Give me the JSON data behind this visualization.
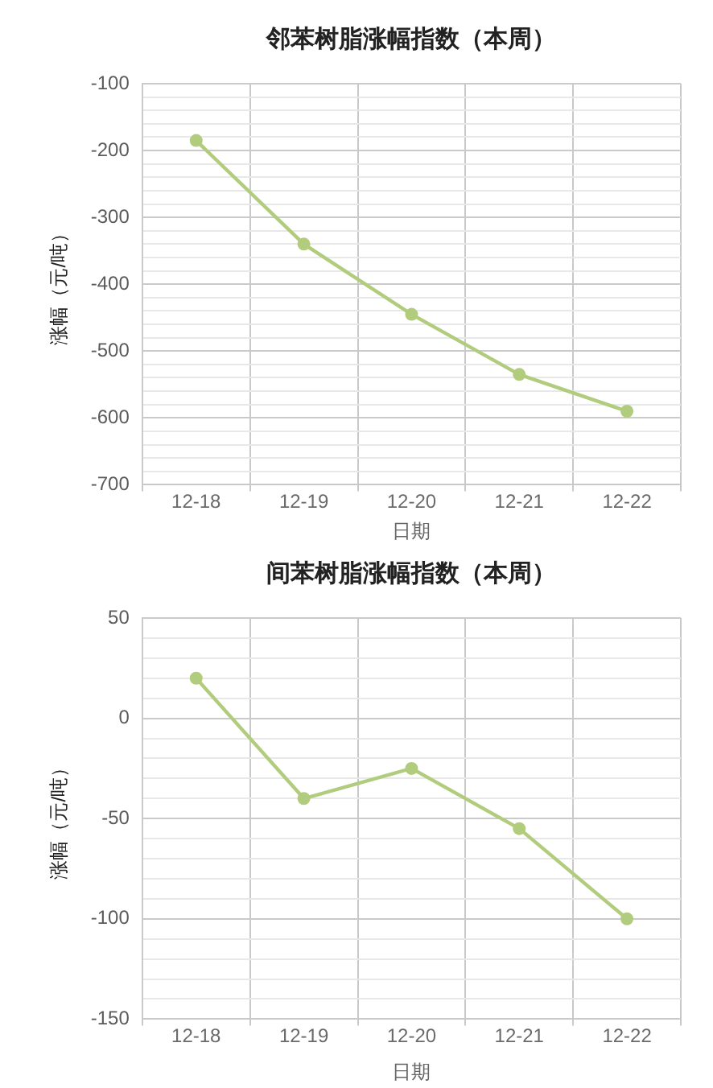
{
  "chart_data": [
    {
      "type": "line",
      "title": "邻苯树脂涨幅指数（本周）",
      "xlabel": "日期",
      "ylabel": "涨幅（元/吨）",
      "categories": [
        "12-18",
        "12-19",
        "12-20",
        "12-21",
        "12-22"
      ],
      "series": [
        {
          "color": "#b2cc7e",
          "values": [
            -185,
            -340,
            -445,
            -535,
            -590
          ]
        }
      ],
      "ylim": [
        -700,
        -100
      ],
      "yticks": [
        -700,
        {
          "value": -680,
          "label": null
        },
        {
          "value": -660,
          "label": null
        },
        {
          "value": -640,
          "label": null
        },
        {
          "value": -620,
          "label": null
        },
        -600,
        {
          "value": -580,
          "label": null
        },
        {
          "value": -560,
          "label": null
        },
        {
          "value": -540,
          "label": null
        },
        {
          "value": -520,
          "label": null
        },
        -500,
        {
          "value": -480,
          "label": null
        },
        {
          "value": -460,
          "label": null
        },
        {
          "value": -440,
          "label": null
        },
        {
          "value": -420,
          "label": null
        },
        -400,
        {
          "value": -380,
          "label": null
        },
        {
          "value": -360,
          "label": null
        },
        {
          "value": -340,
          "label": null
        },
        {
          "value": -320,
          "label": null
        },
        -300,
        {
          "value": -280,
          "label": null
        },
        {
          "value": -260,
          "label": null
        },
        {
          "value": -240,
          "label": null
        },
        {
          "value": -220,
          "label": null
        },
        -200,
        {
          "value": -180,
          "label": null
        },
        {
          "value": -160,
          "label": null
        },
        {
          "value": -140,
          "label": null
        },
        {
          "value": -120,
          "label": null
        },
        -100
      ],
      "grid": true,
      "marker": "circle"
    },
    {
      "type": "line",
      "title": "间苯树脂涨幅指数（本周）",
      "xlabel": "日期",
      "ylabel": "涨幅（元/吨）",
      "categories": [
        "12-18",
        "12-19",
        "12-20",
        "12-21",
        "12-22"
      ],
      "series": [
        {
          "color": "#b2cc7e",
          "values": [
            20,
            -40,
            -25,
            -55,
            -100
          ]
        }
      ],
      "ylim": [
        -150,
        50
      ],
      "yticks": [
        -150,
        {
          "value": -140,
          "label": null
        },
        {
          "value": -130,
          "label": null
        },
        {
          "value": -120,
          "label": null
        },
        {
          "value": -110,
          "label": null
        },
        -100,
        {
          "value": -90,
          "label": null
        },
        {
          "value": -80,
          "label": null
        },
        {
          "value": -70,
          "label": null
        },
        {
          "value": -60,
          "label": null
        },
        -50,
        {
          "value": -40,
          "label": null
        },
        {
          "value": -30,
          "label": null
        },
        {
          "value": -20,
          "label": null
        },
        {
          "value": -10,
          "label": null
        },
        0,
        {
          "value": 10,
          "label": null
        },
        {
          "value": 20,
          "label": null
        },
        {
          "value": 30,
          "label": null
        },
        {
          "value": 40,
          "label": null
        },
        50
      ],
      "grid": true,
      "marker": "circle"
    }
  ]
}
